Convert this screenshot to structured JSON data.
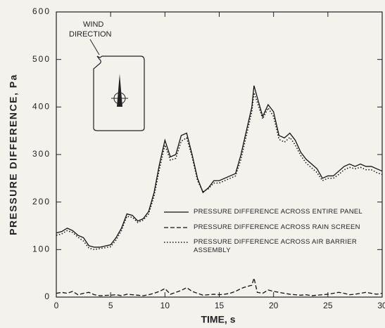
{
  "chart_data": {
    "type": "line",
    "ylabel": "PRESSURE DIFFERENCE, Pa",
    "xlabel": "TIME, s",
    "annotation": [
      "WIND",
      "DIRECTION"
    ],
    "xlim": [
      0,
      30
    ],
    "xticks": [
      0,
      5,
      10,
      15,
      20,
      25,
      30
    ],
    "ylim": [
      0,
      600
    ],
    "yticks": [
      0,
      100,
      200,
      300,
      400,
      500,
      600
    ],
    "x": [
      0,
      0.5,
      1,
      1.5,
      2,
      2.5,
      3,
      3.5,
      4,
      5,
      5.5,
      6,
      6.5,
      7,
      7.5,
      8,
      8.5,
      9,
      9.5,
      10,
      10.5,
      11,
      11.5,
      12,
      12.5,
      13,
      13.5,
      14,
      14.5,
      15,
      15.5,
      16,
      16.5,
      17,
      17.5,
      18,
      18.2,
      18.5,
      19,
      19.5,
      20,
      20.5,
      21,
      21.5,
      22,
      22.5,
      23,
      23.5,
      24,
      24.5,
      25,
      25.5,
      26,
      26.5,
      27,
      27.5,
      28,
      28.5,
      29,
      29.5,
      30
    ],
    "series": [
      {
        "name": "PRESSURE DIFFERENCE ACROSS ENTIRE PANEL",
        "color": "#111111",
        "dash": "solid",
        "values": [
          135,
          138,
          145,
          140,
          130,
          125,
          108,
          105,
          105,
          110,
          125,
          145,
          175,
          172,
          160,
          165,
          180,
          220,
          280,
          330,
          295,
          300,
          340,
          345,
          300,
          250,
          220,
          230,
          245,
          245,
          250,
          255,
          260,
          300,
          350,
          400,
          445,
          420,
          380,
          405,
          390,
          340,
          335,
          345,
          330,
          305,
          290,
          280,
          270,
          250,
          255,
          255,
          265,
          275,
          280,
          275,
          280,
          275,
          275,
          270,
          265
        ]
      },
      {
        "name": "PRESSURE DIFFERENCE ACROSS RAIN SCREEN",
        "color": "#111111",
        "dash": "dashed",
        "values": [
          8,
          10,
          8,
          12,
          5,
          8,
          10,
          5,
          3,
          4,
          5,
          3,
          6,
          5,
          4,
          3,
          5,
          8,
          12,
          18,
          6,
          10,
          14,
          20,
          12,
          8,
          4,
          5,
          6,
          5,
          6,
          8,
          12,
          18,
          22,
          25,
          40,
          10,
          8,
          15,
          12,
          10,
          8,
          6,
          5,
          4,
          5,
          3,
          4,
          5,
          6,
          8,
          10,
          8,
          5,
          6,
          8,
          10,
          8,
          6,
          8
        ]
      },
      {
        "name": "PRESSURE DIFFERENCE ACROSS AIR BARRIER ASSEMBLY",
        "color": "#111111",
        "dash": "dotted",
        "values": [
          130,
          133,
          140,
          136,
          126,
          118,
          103,
          100,
          102,
          106,
          120,
          140,
          170,
          168,
          157,
          162,
          175,
          212,
          270,
          320,
          288,
          292,
          328,
          335,
          295,
          245,
          222,
          228,
          240,
          240,
          245,
          250,
          255,
          290,
          340,
          390,
          430,
          410,
          375,
          398,
          380,
          332,
          326,
          336,
          320,
          298,
          282,
          272,
          262,
          245,
          250,
          250,
          258,
          268,
          273,
          270,
          273,
          268,
          268,
          262,
          258
        ]
      }
    ]
  }
}
